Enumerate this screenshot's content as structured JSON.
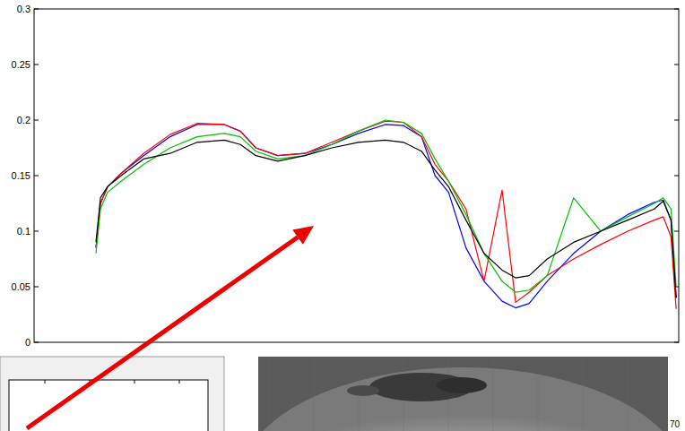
{
  "chart_data": {
    "type": "line",
    "x": [
      9.6,
      10.3,
      11.4,
      13.5,
      17.0,
      21.1,
      25.3,
      29.5,
      32.0,
      34.4,
      37.8,
      42.0,
      46.2,
      50.3,
      54.5,
      57.3,
      60.1,
      62.2,
      64.3,
      67.0,
      69.8,
      72.6,
      74.7,
      76.8,
      79.6,
      83.7,
      87.9,
      92.1,
      96.2,
      97.6,
      98.8,
      99.6
    ],
    "series": [
      {
        "color": "#0000ff",
        "values": [
          0.085,
          0.125,
          0.14,
          0.152,
          0.168,
          0.185,
          0.196,
          0.196,
          0.19,
          0.175,
          0.168,
          0.17,
          0.178,
          0.188,
          0.196,
          0.195,
          0.185,
          0.15,
          0.135,
          0.085,
          0.055,
          0.037,
          0.031,
          0.035,
          0.055,
          0.08,
          0.1,
          0.115,
          0.126,
          0.128,
          0.11,
          0.04
        ]
      },
      {
        "color": "#ff0000",
        "values": [
          0.085,
          0.125,
          0.14,
          0.152,
          0.17,
          0.187,
          0.197,
          0.196,
          0.19,
          0.175,
          0.168,
          0.17,
          0.18,
          0.19,
          0.199,
          0.198,
          0.185,
          0.16,
          0.145,
          0.12,
          0.055,
          0.137,
          0.036,
          0.045,
          0.06,
          0.075,
          0.088,
          0.1,
          0.11,
          0.113,
          0.095,
          0.03
        ]
      },
      {
        "color": "#00c000",
        "values": [
          0.08,
          0.12,
          0.135,
          0.145,
          0.16,
          0.175,
          0.185,
          0.188,
          0.185,
          0.172,
          0.165,
          0.168,
          0.178,
          0.19,
          0.2,
          0.198,
          0.188,
          0.165,
          0.145,
          0.115,
          0.08,
          0.055,
          0.045,
          0.047,
          0.06,
          0.13,
          0.1,
          0.113,
          0.125,
          0.13,
          0.12,
          0.05
        ]
      },
      {
        "color": "#000000",
        "values": [
          0.09,
          0.13,
          0.14,
          0.15,
          0.165,
          0.17,
          0.18,
          0.182,
          0.178,
          0.168,
          0.163,
          0.168,
          0.175,
          0.18,
          0.182,
          0.18,
          0.172,
          0.155,
          0.14,
          0.11,
          0.08,
          0.065,
          0.058,
          0.06,
          0.075,
          0.09,
          0.1,
          0.11,
          0.12,
          0.127,
          0.11,
          0.04
        ]
      }
    ],
    "xlim": [
      0,
      100
    ],
    "ylim": [
      0,
      0.3
    ],
    "yticks": [
      0,
      0.05,
      0.1,
      0.15,
      0.2,
      0.25,
      0.3
    ],
    "tick_labels": "y",
    "grid": false,
    "annotations": [
      "70"
    ]
  }
}
